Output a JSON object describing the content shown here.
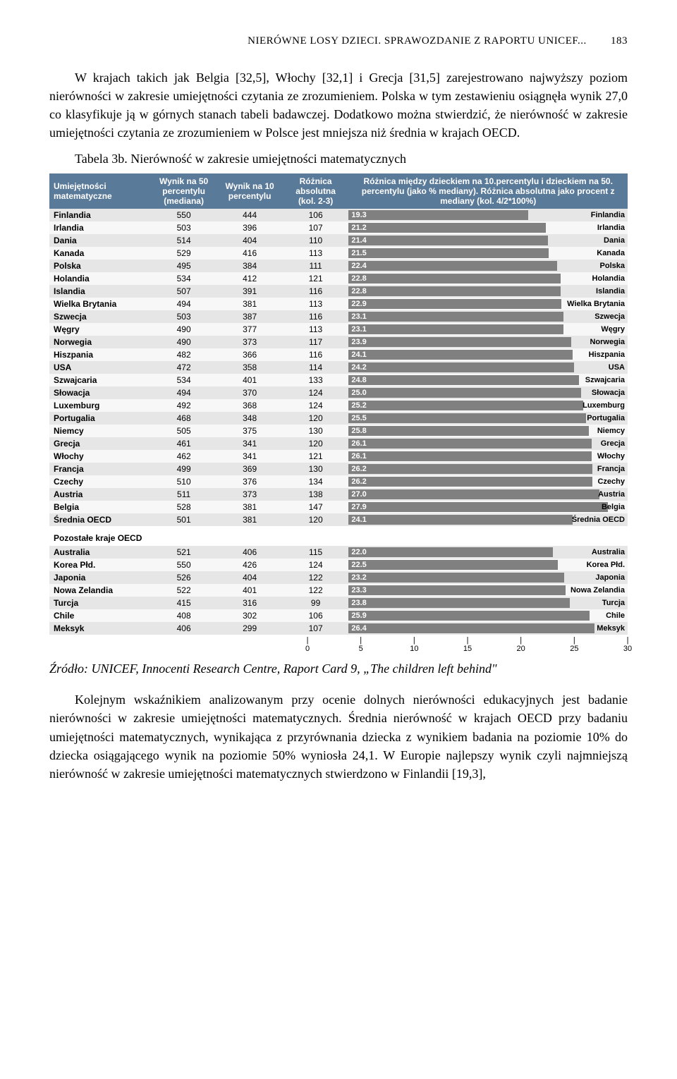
{
  "header": {
    "title": "NIERÓWNE LOSY DZIECI. SPRAWOZDANIE Z RAPORTU UNICEF...",
    "page": "183"
  },
  "para1": "W krajach takich jak Belgia [32,5], Włochy [32,1] i Grecja [31,5] zarejestrowano najwyższy poziom nierówności w zakresie umiejętności czytania ze zrozumieniem. Polska w tym zestawieniu osiągnęła wynik 27,0 co klasyfikuje ją w górnych stanach tabeli badawczej. Dodatkowo można stwierdzić, że nierówność w zakresie umiejętności czytania ze zrozumieniem w Polsce jest mniejsza niż średnia w krajach OECD.",
  "tabCaption": "Tabela 3b. Nierówność w zakresie umiejętności matematycznych",
  "cols": {
    "c1": "Umiejętności matematyczne",
    "c2": "Wynik na 50 percentylu (mediana)",
    "c3": "Wynik na 10 percentylu",
    "c4": "Różnica absolutna (kol. 2-3)",
    "c5": "Różnica między dzieckiem na 10.percentylu i dzieckiem na 50. percentylu (jako % mediany). Różnica absolutna jako procent z mediany (kol. 4/2*100%)"
  },
  "chart": {
    "max": 30,
    "bar_color": "#808080"
  },
  "rows": [
    {
      "n": "Finlandia",
      "a": 550,
      "b": 444,
      "c": 106,
      "p": 19.3
    },
    {
      "n": "Irlandia",
      "a": 503,
      "b": 396,
      "c": 107,
      "p": 21.2
    },
    {
      "n": "Dania",
      "a": 514,
      "b": 404,
      "c": 110,
      "p": 21.4
    },
    {
      "n": "Kanada",
      "a": 529,
      "b": 416,
      "c": 113,
      "p": 21.5
    },
    {
      "n": "Polska",
      "a": 495,
      "b": 384,
      "c": 111,
      "p": 22.4
    },
    {
      "n": "Holandia",
      "a": 534,
      "b": 412,
      "c": 121,
      "p": 22.8
    },
    {
      "n": "Islandia",
      "a": 507,
      "b": 391,
      "c": 116,
      "p": 22.8
    },
    {
      "n": "Wielka Brytania",
      "a": 494,
      "b": 381,
      "c": 113,
      "p": 22.9
    },
    {
      "n": "Szwecja",
      "a": 503,
      "b": 387,
      "c": 116,
      "p": 23.1
    },
    {
      "n": "Węgry",
      "a": 490,
      "b": 377,
      "c": 113,
      "p": 23.1
    },
    {
      "n": "Norwegia",
      "a": 490,
      "b": 373,
      "c": 117,
      "p": 23.9
    },
    {
      "n": "Hiszpania",
      "a": 482,
      "b": 366,
      "c": 116,
      "p": 24.1
    },
    {
      "n": "USA",
      "a": 472,
      "b": 358,
      "c": 114,
      "p": 24.2
    },
    {
      "n": "Szwajcaria",
      "a": 534,
      "b": 401,
      "c": 133,
      "p": 24.8
    },
    {
      "n": "Słowacja",
      "a": 494,
      "b": 370,
      "c": 124,
      "p": 25.0
    },
    {
      "n": "Luxemburg",
      "a": 492,
      "b": 368,
      "c": 124,
      "p": 25.2
    },
    {
      "n": "Portugalia",
      "a": 468,
      "b": 348,
      "c": 120,
      "p": 25.5
    },
    {
      "n": "Niemcy",
      "a": 505,
      "b": 375,
      "c": 130,
      "p": 25.8
    },
    {
      "n": "Grecja",
      "a": 461,
      "b": 341,
      "c": 120,
      "p": 26.1
    },
    {
      "n": "Włochy",
      "a": 462,
      "b": 341,
      "c": 121,
      "p": 26.1
    },
    {
      "n": "Francja",
      "a": 499,
      "b": 369,
      "c": 130,
      "p": 26.2
    },
    {
      "n": "Czechy",
      "a": 510,
      "b": 376,
      "c": 134,
      "p": 26.2
    },
    {
      "n": "Austria",
      "a": 511,
      "b": 373,
      "c": 138,
      "p": 27.0
    },
    {
      "n": "Belgia",
      "a": 528,
      "b": 381,
      "c": 147,
      "p": 27.9
    },
    {
      "n": "Średnia OECD",
      "a": 501,
      "b": 381,
      "c": 120,
      "p": 24.1
    }
  ],
  "subHeader": "Pozostałe kraje OECD",
  "rows2": [
    {
      "n": "Australia",
      "a": 521,
      "b": 406,
      "c": 115,
      "p": 22.0
    },
    {
      "n": "Korea Płd.",
      "a": 550,
      "b": 426,
      "c": 124,
      "p": 22.5
    },
    {
      "n": "Japonia",
      "a": 526,
      "b": 404,
      "c": 122,
      "p": 23.2
    },
    {
      "n": "Nowa Zelandia",
      "a": 522,
      "b": 401,
      "c": 122,
      "p": 23.3
    },
    {
      "n": "Turcja",
      "a": 415,
      "b": 316,
      "c": 99,
      "p": 23.8
    },
    {
      "n": "Chile",
      "a": 408,
      "b": 302,
      "c": 106,
      "p": 25.9
    },
    {
      "n": "Meksyk",
      "a": 406,
      "b": 299,
      "c": 107,
      "p": 26.4
    }
  ],
  "axis": [
    0,
    5,
    10,
    15,
    20,
    25,
    30
  ],
  "source": {
    "label": "Źródło",
    "text": ": UNICEF, Innocenti Research Centre, Raport Card 9, „The children left behind\""
  },
  "para2": "Kolejnym wskaźnikiem analizowanym przy ocenie dolnych nierówności edukacyjnych jest badanie nierówności w zakresie umiejętności matematycznych. Średnia nierówność w krajach OECD przy badaniu umiejętności matematycznych, wynikająca z przyrównania dziecka z wynikiem badania na poziomie 10% do dziecka osiągającego wynik na poziomie 50% wyniosła 24,1. W Europie najlepszy wynik czyli najmniejszą nierówność w zakresie umiejętności matematycznych stwierdzono w Finlandii [19,3],"
}
